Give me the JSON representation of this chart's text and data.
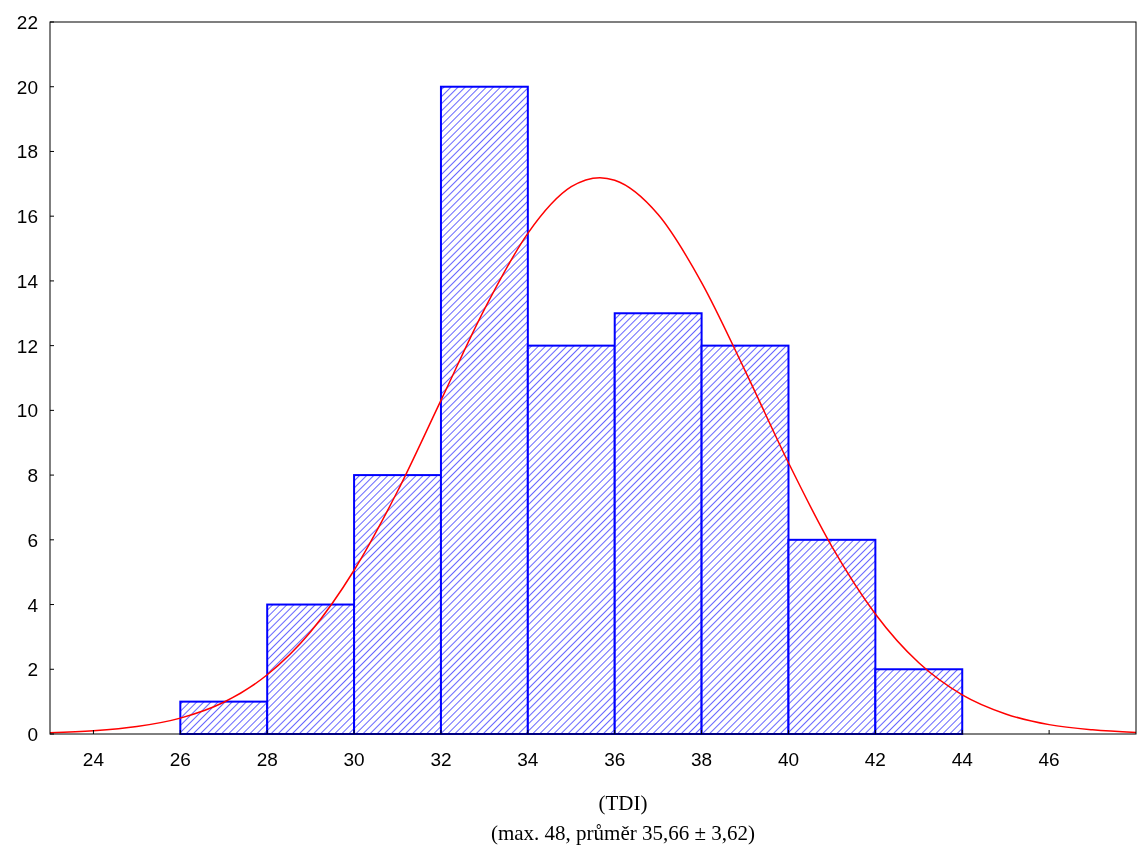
{
  "chart_data": {
    "type": "histogram",
    "xlabel": "(TDI)",
    "annotations": [
      "(max. 48, průměr 35,66 ± 3,62)"
    ],
    "bins": [
      26,
      28,
      30,
      32,
      34,
      36,
      38,
      40,
      42,
      44
    ],
    "values": [
      1,
      4,
      8,
      20,
      12,
      13,
      12,
      6,
      2
    ],
    "color": "#0000ff",
    "xlim": [
      23,
      48
    ],
    "xticks": [
      24,
      26,
      28,
      30,
      32,
      34,
      36,
      38,
      40,
      42,
      44,
      46
    ],
    "ylim": [
      0,
      22
    ],
    "yticks": [
      0,
      2,
      4,
      6,
      8,
      10,
      12,
      14,
      16,
      18,
      20,
      22
    ],
    "series": [
      {
        "type": "line",
        "color": "#ff0000",
        "x": [
          23,
          24,
          25,
          26,
          27,
          28,
          29,
          30,
          31,
          32,
          33,
          34,
          35,
          35.66,
          36,
          37,
          38,
          39,
          40,
          41,
          42,
          43,
          44,
          45,
          46,
          47,
          48
        ],
        "values": [
          0.04,
          0.1,
          0.23,
          0.49,
          0.98,
          1.83,
          3.16,
          5.06,
          7.5,
          10.31,
          13.12,
          15.47,
          16.91,
          17.19,
          17.11,
          16.05,
          13.95,
          11.23,
          8.38,
          5.79,
          3.71,
          2.2,
          1.21,
          0.62,
          0.29,
          0.13,
          0.05
        ]
      }
    ]
  }
}
